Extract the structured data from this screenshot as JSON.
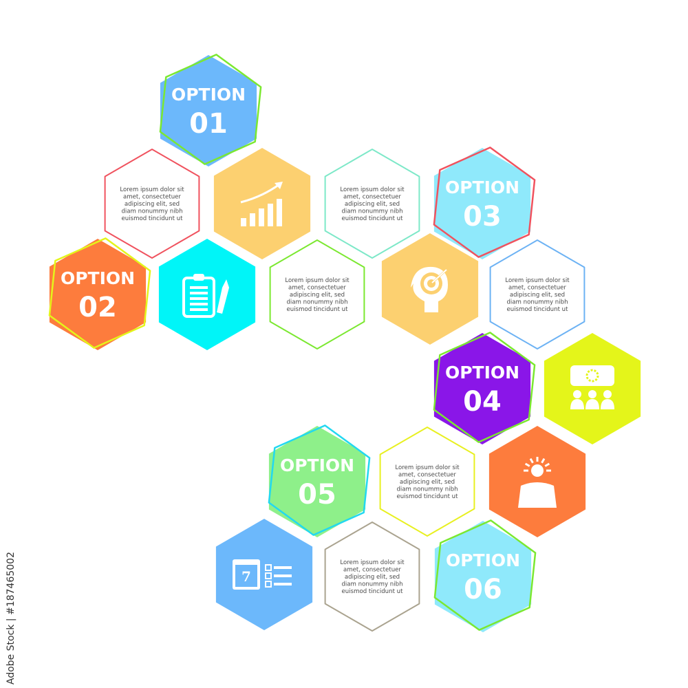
{
  "watermark": "Adobe Stock | #187465002",
  "lorem_lines": [
    "Lorem ipsum dolor sit",
    "amet, consectetuer",
    "adipiscing elit, sed",
    "diam nonummy nibh",
    "euismod tincidunt ut"
  ],
  "options": [
    {
      "label": "OPTION",
      "number": "01",
      "fill": "#6cb8fb",
      "border": "#7be830"
    },
    {
      "label": "OPTION",
      "number": "02",
      "fill": "#fd7c3d",
      "border": "#e4f51a"
    },
    {
      "label": "OPTION",
      "number": "03",
      "fill": "#8fe9fb",
      "border": "#f0525e"
    },
    {
      "label": "OPTION",
      "number": "04",
      "fill": "#8a16e8",
      "border": "#7be830"
    },
    {
      "label": "OPTION",
      "number": "05",
      "fill": "#8ef08a",
      "border": "#22d8f0"
    },
    {
      "label": "OPTION",
      "number": "06",
      "fill": "#8fe9fb",
      "border": "#7be830"
    }
  ],
  "text_boxes": [
    {
      "stroke": "#f0525e"
    },
    {
      "stroke": "#7de8c8"
    },
    {
      "stroke": "#7be830"
    },
    {
      "stroke": "#6cb2f4"
    },
    {
      "stroke": "#e8f020"
    },
    {
      "stroke": "#aaa38f"
    }
  ],
  "icon_tiles": [
    {
      "icon": "growth-chart-icon",
      "fill": "#fcd070"
    },
    {
      "icon": "clipboard-pencil-icon",
      "fill": "#00f5f8"
    },
    {
      "icon": "head-target-icon",
      "fill": "#fcd070"
    },
    {
      "icon": "team-meeting-icon",
      "fill": "#e4f51a"
    },
    {
      "icon": "idea-person-icon",
      "fill": "#fd7c3d"
    },
    {
      "icon": "calendar-checklist-icon",
      "fill": "#6cb8fb"
    }
  ]
}
